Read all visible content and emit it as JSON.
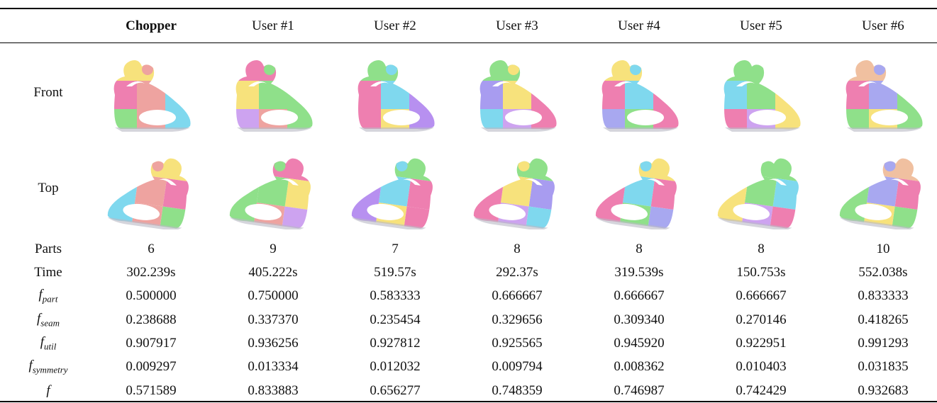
{
  "table": {
    "header": [
      "Chopper",
      "User #1",
      "User #2",
      "User #3",
      "User #4",
      "User #5",
      "User #6"
    ],
    "views": [
      "Front",
      "Top"
    ],
    "rows": [
      {
        "label": "Parts",
        "values": [
          "6",
          "9",
          "7",
          "8",
          "8",
          "8",
          "10"
        ]
      },
      {
        "label": "Time",
        "values": [
          "302.239s",
          "405.222s",
          "519.57s",
          "292.37s",
          "319.539s",
          "150.753s",
          "552.038s"
        ]
      },
      {
        "label": "f",
        "subscript": "part",
        "values": [
          "0.500000",
          "0.750000",
          "0.583333",
          "0.666667",
          "0.666667",
          "0.666667",
          "0.833333"
        ]
      },
      {
        "label": "f",
        "subscript": "seam",
        "values": [
          "0.238688",
          "0.337370",
          "0.235454",
          "0.329656",
          "0.309340",
          "0.270146",
          "0.418265"
        ]
      },
      {
        "label": "f",
        "subscript": "util",
        "values": [
          "0.907917",
          "0.936256",
          "0.927812",
          "0.925565",
          "0.945920",
          "0.922951",
          "0.991293"
        ]
      },
      {
        "label": "f",
        "subscript": "symmetry",
        "values": [
          "0.009297",
          "0.013334",
          "0.012032",
          "0.009794",
          "0.008362",
          "0.010403",
          "0.031835"
        ]
      },
      {
        "label": "f",
        "values": [
          "0.571589",
          "0.833883",
          "0.656277",
          "0.748359",
          "0.746987",
          "0.742429",
          "0.932683"
        ]
      }
    ]
  }
}
